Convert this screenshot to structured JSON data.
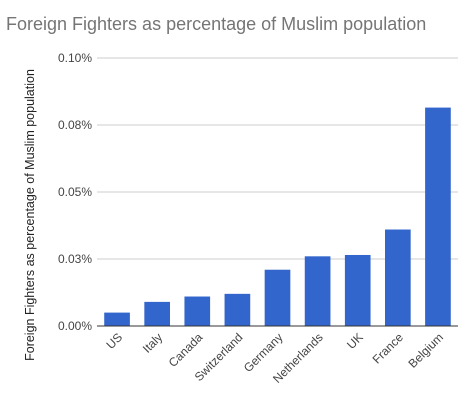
{
  "chart_data": {
    "type": "bar",
    "title": "Foreign Fighters as percentage of Muslim population",
    "xlabel": "",
    "ylabel": "Foreign Fighters as percentage of Muslim population",
    "categories": [
      "US",
      "Italy",
      "Canada",
      "Switzerland",
      "Germany",
      "Netherlands",
      "UK",
      "France",
      "Belgium"
    ],
    "series": [
      {
        "values": [
          0.005,
          0.009,
          0.011,
          0.012,
          0.021,
          0.026,
          0.0265,
          0.036,
          0.0815
        ]
      }
    ],
    "ylim": [
      0,
      0.1
    ],
    "yticks": [
      {
        "value": 0,
        "label": "0.00%"
      },
      {
        "value": 0.025,
        "label": "0.03%"
      },
      {
        "value": 0.05,
        "label": "0.05%"
      },
      {
        "value": 0.075,
        "label": "0.08%"
      },
      {
        "value": 0.1,
        "label": "0.10%"
      }
    ],
    "grid": true,
    "legend": "none",
    "colors": {
      "bar": "#3366cc",
      "grid": "#cccccc",
      "axis": "#333333",
      "title": "#757575"
    }
  }
}
